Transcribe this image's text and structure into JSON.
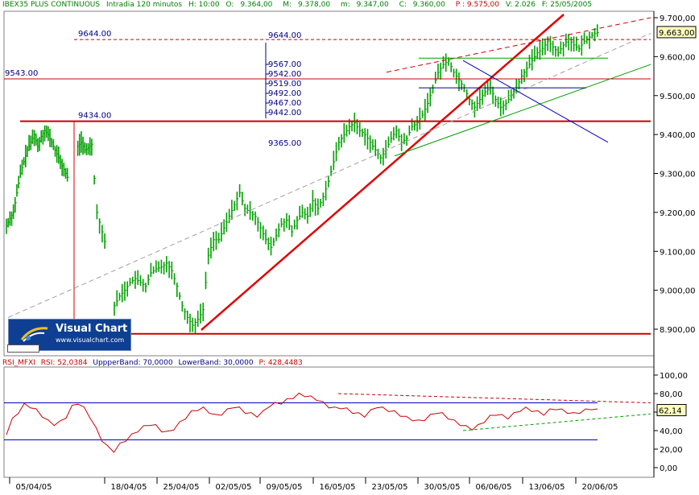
{
  "header": {
    "symbol": "IBEX35 PLUS CONTINUOUS",
    "interval": "Intradia 120 minutos",
    "hour": "H: 10:00",
    "open": "9.364,00",
    "max": "9.378,00",
    "min": "9.347,00",
    "close": "9.360,00",
    "p": "P : 9.575,00",
    "v": "V: 2.026",
    "f": "F: 25/05/2005",
    "o_label": "O:",
    "m_label": "M:",
    "min_label": "m:",
    "c_label": "C:"
  },
  "logo": {
    "title": "Visual Chart",
    "url": "www.visualchart.com"
  },
  "rsi_header": {
    "name": "RSI_MFXI",
    "rsi": "RSI: 52,0384",
    "upper": "UppperBand: 70,0000",
    "lower": "LowerBand: 30,0000",
    "p": "P: 428,4483"
  },
  "chart_data": [
    {
      "type": "bar",
      "title": "IBEX35 PLUS CONTINUOUS - Intradia 120 minutos",
      "xlabel": "",
      "ylabel": "",
      "ylim": [
        8830,
        9705
      ],
      "yticks": [
        "9.700,00",
        "9.600,00",
        "9.500,00",
        "9.400,00",
        "9.300,00",
        "9.200,00",
        "9.100,00",
        "9.000,00",
        "8.900,00"
      ],
      "xticks": [
        "05/04/05",
        "18/04/05",
        "25/04/05",
        "02/05/05",
        "09/05/05",
        "16/05/05",
        "23/05/05",
        "30/05/05",
        "06/06/05",
        "13/06/05",
        "20/06/05"
      ],
      "last_value_label": "9.663,00",
      "close_path": [
        [
          0,
          9165
        ],
        [
          2,
          9185
        ],
        [
          4,
          9200
        ],
        [
          6,
          9250
        ],
        [
          8,
          9300
        ],
        [
          10,
          9330
        ],
        [
          12,
          9360
        ],
        [
          14,
          9380
        ],
        [
          16,
          9400
        ],
        [
          18,
          9370
        ],
        [
          20,
          9395
        ],
        [
          22,
          9410
        ],
        [
          24,
          9400
        ],
        [
          26,
          9380
        ],
        [
          28,
          9360
        ],
        [
          30,
          9340
        ],
        [
          32,
          9320
        ],
        [
          34,
          9300
        ],
        [
          36,
          9280
        ],
        [
          41,
          9370
        ],
        [
          43,
          9380
        ],
        [
          45,
          9360
        ],
        [
          47,
          9365
        ],
        [
          49,
          9375
        ],
        [
          52,
          9200
        ],
        [
          55,
          9150
        ],
        [
          58,
          9100
        ],
        [
          62,
          8960
        ],
        [
          65,
          8985
        ],
        [
          68,
          9000
        ],
        [
          71,
          9020
        ],
        [
          74,
          9030
        ],
        [
          77,
          9020
        ],
        [
          80,
          9010
        ],
        [
          83,
          9045
        ],
        [
          86,
          9055
        ],
        [
          89,
          9060
        ],
        [
          92,
          9070
        ],
        [
          95,
          9050
        ],
        [
          98,
          9010
        ],
        [
          101,
          8960
        ],
        [
          104,
          8930
        ],
        [
          107,
          8910
        ],
        [
          110,
          8925
        ],
        [
          113,
          8950
        ],
        [
          116,
          9090
        ],
        [
          119,
          9130
        ],
        [
          122,
          9130
        ],
        [
          125,
          9160
        ],
        [
          128,
          9190
        ],
        [
          131,
          9220
        ],
        [
          134,
          9250
        ],
        [
          137,
          9210
        ],
        [
          140,
          9200
        ],
        [
          143,
          9190
        ],
        [
          146,
          9160
        ],
        [
          149,
          9130
        ],
        [
          152,
          9110
        ],
        [
          155,
          9140
        ],
        [
          158,
          9170
        ],
        [
          161,
          9180
        ],
        [
          164,
          9150
        ],
        [
          167,
          9180
        ],
        [
          170,
          9200
        ],
        [
          173,
          9190
        ],
        [
          176,
          9230
        ],
        [
          179,
          9210
        ],
        [
          182,
          9240
        ],
        [
          185,
          9280
        ],
        [
          188,
          9330
        ],
        [
          191,
          9380
        ],
        [
          194,
          9400
        ],
        [
          197,
          9420
        ],
        [
          200,
          9430
        ],
        [
          203,
          9410
        ],
        [
          206,
          9400
        ],
        [
          209,
          9380
        ],
        [
          212,
          9360
        ],
        [
          215,
          9340
        ],
        [
          218,
          9360
        ],
        [
          221,
          9390
        ],
        [
          224,
          9410
        ],
        [
          227,
          9380
        ],
        [
          230,
          9390
        ],
        [
          233,
          9420
        ],
        [
          236,
          9430
        ],
        [
          239,
          9450
        ],
        [
          242,
          9480
        ],
        [
          245,
          9520
        ],
        [
          248,
          9560
        ],
        [
          251,
          9580
        ],
        [
          254,
          9590
        ],
        [
          257,
          9560
        ],
        [
          260,
          9540
        ],
        [
          263,
          9520
        ],
        [
          266,
          9490
        ],
        [
          269,
          9470
        ],
        [
          272,
          9490
        ],
        [
          275,
          9510
        ],
        [
          278,
          9520
        ],
        [
          281,
          9490
        ],
        [
          284,
          9470
        ],
        [
          287,
          9480
        ],
        [
          290,
          9500
        ],
        [
          293,
          9520
        ],
        [
          296,
          9550
        ],
        [
          299,
          9570
        ],
        [
          302,
          9590
        ],
        [
          305,
          9610
        ],
        [
          308,
          9620
        ],
        [
          311,
          9640
        ],
        [
          314,
          9625
        ],
        [
          317,
          9610
        ],
        [
          320,
          9630
        ],
        [
          323,
          9645
        ],
        [
          326,
          9630
        ],
        [
          329,
          9620
        ],
        [
          332,
          9640
        ],
        [
          335,
          9650
        ],
        [
          338,
          9660
        ],
        [
          341,
          9663
        ]
      ],
      "horizontal_lines": [
        {
          "value": 9644,
          "label": "9644.00"
        },
        {
          "value": 9543,
          "label": "9543.00"
        },
        {
          "value": 9434,
          "label": "9434.00"
        },
        {
          "value": 8888,
          "label": ""
        }
      ],
      "fib_labels": [
        "9644.00",
        "9567.00",
        "9542.00",
        "9519.00",
        "9492.00",
        "9467.00",
        "9442.00",
        "9365.00"
      ]
    },
    {
      "type": "line",
      "title": "RSI_MFXI",
      "xlabel": "",
      "ylabel": "",
      "ylim": [
        -5,
        105
      ],
      "yticks": [
        "100,00",
        "80,00",
        "60,00",
        "40,00",
        "20,00",
        "0,00"
      ],
      "upper_band": 70,
      "lower_band": 30,
      "last_value_label": "62,14",
      "values": [
        37,
        52,
        60,
        68,
        66,
        62,
        56,
        50,
        47,
        49,
        55,
        66,
        70,
        64,
        55,
        42,
        30,
        22,
        18,
        25,
        30,
        35,
        40,
        44,
        47,
        45,
        40,
        38,
        42,
        48,
        54,
        60,
        63,
        64,
        60,
        56,
        58,
        62,
        66,
        64,
        60,
        58,
        56,
        60,
        67,
        69,
        70,
        73,
        76,
        79,
        78,
        76,
        74,
        70,
        66,
        64,
        65,
        63,
        60,
        58,
        56,
        61,
        66,
        64,
        62,
        60,
        57,
        54,
        52,
        50,
        52,
        56,
        60,
        58,
        54,
        50,
        47,
        44,
        42,
        45,
        50,
        55,
        58,
        56,
        54,
        58,
        62,
        64,
        62,
        60,
        58,
        62,
        64,
        62,
        60,
        58,
        60,
        62,
        64,
        62
      ]
    }
  ]
}
